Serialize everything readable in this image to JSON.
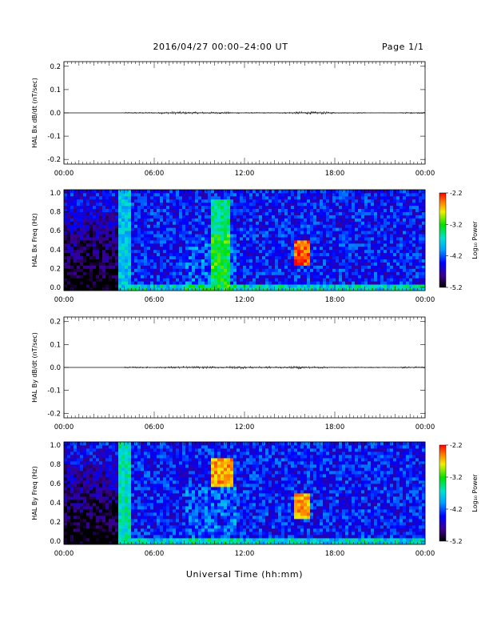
{
  "header": {
    "title": "2016/04/27  00:00–24:00 UT",
    "page": "Page 1/1"
  },
  "chart_data": [
    {
      "type": "line",
      "ylabel": "HAL Bx dB/dt (nT/sec)",
      "ylim": [
        -0.22,
        0.22
      ],
      "yticks": [
        0.2,
        0.1,
        0.0,
        -0.1,
        -0.2
      ],
      "ytick_labels": [
        "0.2",
        "0.1",
        "0.0",
        "-0.1",
        "-0.2"
      ],
      "xlim": [
        "00:00",
        "24:00"
      ],
      "xtick_labels": [
        "00:00",
        "06:00",
        "12:00",
        "18:00",
        "00:00"
      ],
      "series": [
        {
          "values_description_free": true,
          "x_hours": [
            0,
            3.9,
            4.0,
            6.5,
            7.0,
            8.0,
            10.0,
            10.5,
            11.0,
            12.0,
            14.5,
            15.0,
            15.5,
            16.0,
            17.5,
            18.0,
            20.0,
            22.0,
            22.5,
            24.0
          ],
          "y": [
            0,
            0,
            0.004,
            0.006,
            0.008,
            0.006,
            0.005,
            0.006,
            0.004,
            0.003,
            0.004,
            0.006,
            0.008,
            0.007,
            0.005,
            0.003,
            0.002,
            0.003,
            0.004,
            0
          ]
        }
      ]
    },
    {
      "type": "heatmap",
      "ylabel": "HAL Bx Freq (Hz)",
      "ylim": [
        0.0,
        1.0
      ],
      "ytick_labels": [
        "1.0",
        "0.8",
        "0.6",
        "0.4",
        "0.2",
        "0.0"
      ],
      "xlim": [
        "00:00",
        "24:00"
      ],
      "xtick_labels": [
        "00:00",
        "06:00",
        "12:00",
        "18:00",
        "00:00"
      ],
      "colorbar": {
        "label": "Log₁₀ Power",
        "range": [
          -5.2,
          -2.2
        ],
        "tick_labels": [
          "-2.2",
          "-3.2",
          "-4.2",
          "-5.2"
        ]
      },
      "features": [
        {
          "time_hours": [
            4.0,
            4.2
          ],
          "freq": [
            0.0,
            1.0
          ],
          "log_power": -3.8
        },
        {
          "time_hours": [
            10.0,
            10.8
          ],
          "freq": [
            0.0,
            0.9
          ],
          "log_power": -3.5
        },
        {
          "time_hours": [
            15.5,
            16.0
          ],
          "freq": [
            0.25,
            0.5
          ],
          "log_power": -2.4
        }
      ]
    },
    {
      "type": "line",
      "ylabel": "HAL By dB/dt (nT/sec)",
      "ylim": [
        -0.22,
        0.22
      ],
      "yticks": [
        0.2,
        0.1,
        0.0,
        -0.1,
        -0.2
      ],
      "ytick_labels": [
        "0.2",
        "0.1",
        "0.0",
        "-0.1",
        "-0.2"
      ],
      "xlim": [
        "00:00",
        "24:00"
      ],
      "xtick_labels": [
        "00:00",
        "06:00",
        "12:00",
        "18:00",
        "00:00"
      ],
      "series": [
        {
          "x_hours": [
            0,
            3.9,
            4.0,
            6.5,
            7.0,
            8.0,
            10.0,
            11.0,
            12.0,
            14.5,
            15.0,
            15.5,
            16.0,
            17.5,
            18.0,
            20.0,
            22.0,
            22.5,
            24.0
          ],
          "y": [
            0,
            0,
            0.004,
            0.005,
            0.006,
            0.006,
            0.005,
            0.008,
            0.006,
            0.004,
            0.006,
            0.008,
            0.006,
            0.004,
            0.003,
            0.003,
            0.003,
            0.005,
            0
          ]
        }
      ]
    },
    {
      "type": "heatmap",
      "ylabel": "HAL By Freq (Hz)",
      "ylim": [
        0.0,
        1.0
      ],
      "ytick_labels": [
        "1.0",
        "0.8",
        "0.6",
        "0.4",
        "0.2",
        "0.0"
      ],
      "xlim": [
        "00:00",
        "24:00"
      ],
      "xtick_labels": [
        "00:00",
        "06:00",
        "12:00",
        "18:00",
        "00:00"
      ],
      "colorbar": {
        "label": "Log₁₀ Power",
        "range": [
          -5.2,
          -2.2
        ],
        "tick_labels": [
          "-2.2",
          "-3.2",
          "-4.2",
          "-5.2"
        ]
      },
      "features": [
        {
          "time_hours": [
            4.0,
            4.2
          ],
          "freq": [
            0.0,
            1.0
          ],
          "log_power": -3.6
        },
        {
          "time_hours": [
            10.0,
            11.0
          ],
          "freq": [
            0.55,
            0.85
          ],
          "log_power": -2.6
        },
        {
          "time_hours": [
            15.5,
            16.0
          ],
          "freq": [
            0.25,
            0.5
          ],
          "log_power": -2.6
        }
      ]
    }
  ],
  "xaxis_title": "Universal Time (hh:mm)"
}
